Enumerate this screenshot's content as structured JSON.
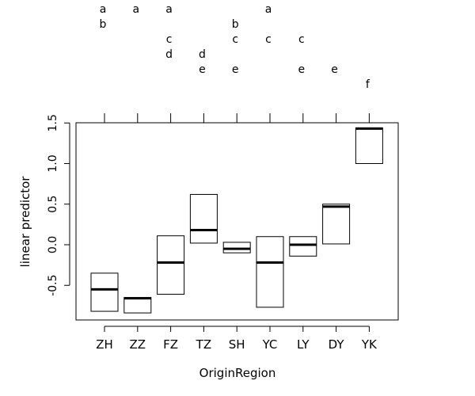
{
  "chart_data": {
    "type": "box",
    "xlabel": "OriginRegion",
    "ylabel": "linear predictor",
    "ylim": [
      -0.95,
      1.55
    ],
    "yticks": [
      -0.5,
      0.0,
      0.5,
      1.0,
      1.5
    ],
    "ytick_labels": [
      "-0.5",
      "0.0",
      "0.5",
      "1.0",
      "1.5"
    ],
    "categories": [
      "ZH",
      "ZZ",
      "FZ",
      "TZ",
      "SH",
      "YC",
      "LY",
      "DY",
      "YK"
    ],
    "boxes": [
      {
        "category": "ZH",
        "low": -0.82,
        "mid": -0.55,
        "high": -0.35
      },
      {
        "category": "ZZ",
        "low": -0.84,
        "mid": -0.66,
        "high": -0.65
      },
      {
        "category": "FZ",
        "low": -0.61,
        "mid": -0.22,
        "high": 0.11
      },
      {
        "category": "TZ",
        "low": 0.02,
        "mid": 0.18,
        "high": 0.62
      },
      {
        "category": "SH",
        "low": -0.1,
        "mid": -0.05,
        "high": 0.03
      },
      {
        "category": "YC",
        "low": -0.77,
        "mid": -0.22,
        "high": 0.1
      },
      {
        "category": "LY",
        "low": -0.14,
        "mid": 0.0,
        "high": 0.1
      },
      {
        "category": "DY",
        "low": 0.01,
        "mid": 0.47,
        "high": 0.5
      },
      {
        "category": "YK",
        "low": 1.0,
        "mid": 1.43,
        "high": 1.44
      }
    ],
    "group_letters": [
      [
        "a",
        "b",
        "",
        "",
        "",
        ""
      ],
      [
        "a",
        "",
        "",
        "",
        "",
        ""
      ],
      [
        "a",
        "",
        "c",
        "d",
        "",
        ""
      ],
      [
        "",
        "",
        "",
        "d",
        "e",
        ""
      ],
      [
        "",
        "b",
        "c",
        "",
        "e",
        ""
      ],
      [
        "a",
        "",
        "c",
        "",
        "",
        ""
      ],
      [
        "",
        "",
        "c",
        "",
        "e",
        ""
      ],
      [
        "",
        "",
        "",
        "",
        "e",
        ""
      ],
      [
        "",
        "",
        "",
        "",
        "",
        "f"
      ]
    ],
    "grid": false
  }
}
